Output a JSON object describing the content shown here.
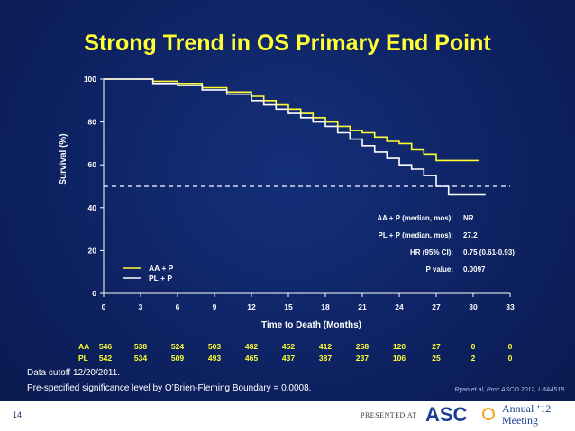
{
  "slide": {
    "title": "Strong Trend in OS Primary End Point",
    "note1": "Data cutoff 12/20/2011.",
    "note2": "Pre-specified significance level by O’Brien-Fleming Boundary = 0.0008.",
    "citation": "Ryan et al, Proc ASCO 2012, LBA4518",
    "slide_number": "14",
    "presented_at": "PRESENTED AT",
    "logo_text": "ASC",
    "meeting_line1": "Annual ’12",
    "meeting_line2": "Meeting"
  },
  "colors": {
    "series1": "#ffff33",
    "series2": "#ffffff",
    "axis": "#ffffff",
    "title": "#ffff33"
  },
  "chart_data": {
    "type": "line",
    "title": "Strong Trend in OS Primary End Point",
    "xlabel": "Time to Death (Months)",
    "ylabel": "Survival (%)",
    "xlim": [
      0,
      33
    ],
    "ylim": [
      0,
      100
    ],
    "xticks": [
      0,
      3,
      6,
      9,
      12,
      15,
      18,
      21,
      24,
      27,
      30,
      33
    ],
    "yticks": [
      0,
      20,
      40,
      60,
      80,
      100
    ],
    "reference_line": 50,
    "series": [
      {
        "name": "AA + P",
        "color": "#ffff33",
        "x": [
          0,
          2.5,
          4,
          6,
          8,
          10,
          12,
          13,
          14,
          15,
          16,
          17,
          18,
          19,
          20,
          21,
          22,
          23,
          24,
          25,
          26,
          27,
          28,
          30,
          30.5
        ],
        "y": [
          100,
          100,
          99,
          98,
          96,
          94,
          92,
          90,
          88,
          86,
          84,
          82,
          80,
          78,
          76,
          75,
          73,
          71,
          70,
          67,
          65,
          62,
          62,
          62,
          62
        ]
      },
      {
        "name": "PL + P",
        "color": "#ffffff",
        "x": [
          0,
          2.5,
          4,
          6,
          8,
          10,
          12,
          13,
          14,
          15,
          16,
          17,
          18,
          19,
          20,
          21,
          22,
          23,
          24,
          25,
          26,
          27,
          28,
          29,
          30,
          31
        ],
        "y": [
          100,
          100,
          98,
          97,
          95,
          93,
          90,
          88,
          86,
          84,
          82,
          80,
          78,
          75,
          72,
          69,
          66,
          63,
          60,
          58,
          55,
          50,
          46,
          46,
          46,
          46
        ]
      }
    ],
    "legend": [
      "AA + P",
      "PL + P"
    ],
    "stats": [
      {
        "label": "AA + P (median, mos):",
        "value": "NR"
      },
      {
        "label": "PL + P (median, mos):",
        "value": "27.2"
      },
      {
        "label": "HR (95% CI):",
        "value": "0.75 (0.61-0.93)"
      },
      {
        "label": "P value:",
        "value": "0.0097"
      }
    ],
    "at_risk": [
      {
        "name": "AA",
        "values": [
          "546",
          "538",
          "524",
          "503",
          "482",
          "452",
          "412",
          "258",
          "120",
          "27",
          "0",
          "0"
        ]
      },
      {
        "name": "PL",
        "values": [
          "542",
          "534",
          "509",
          "493",
          "465",
          "437",
          "387",
          "237",
          "106",
          "25",
          "2",
          "0"
        ]
      }
    ]
  }
}
